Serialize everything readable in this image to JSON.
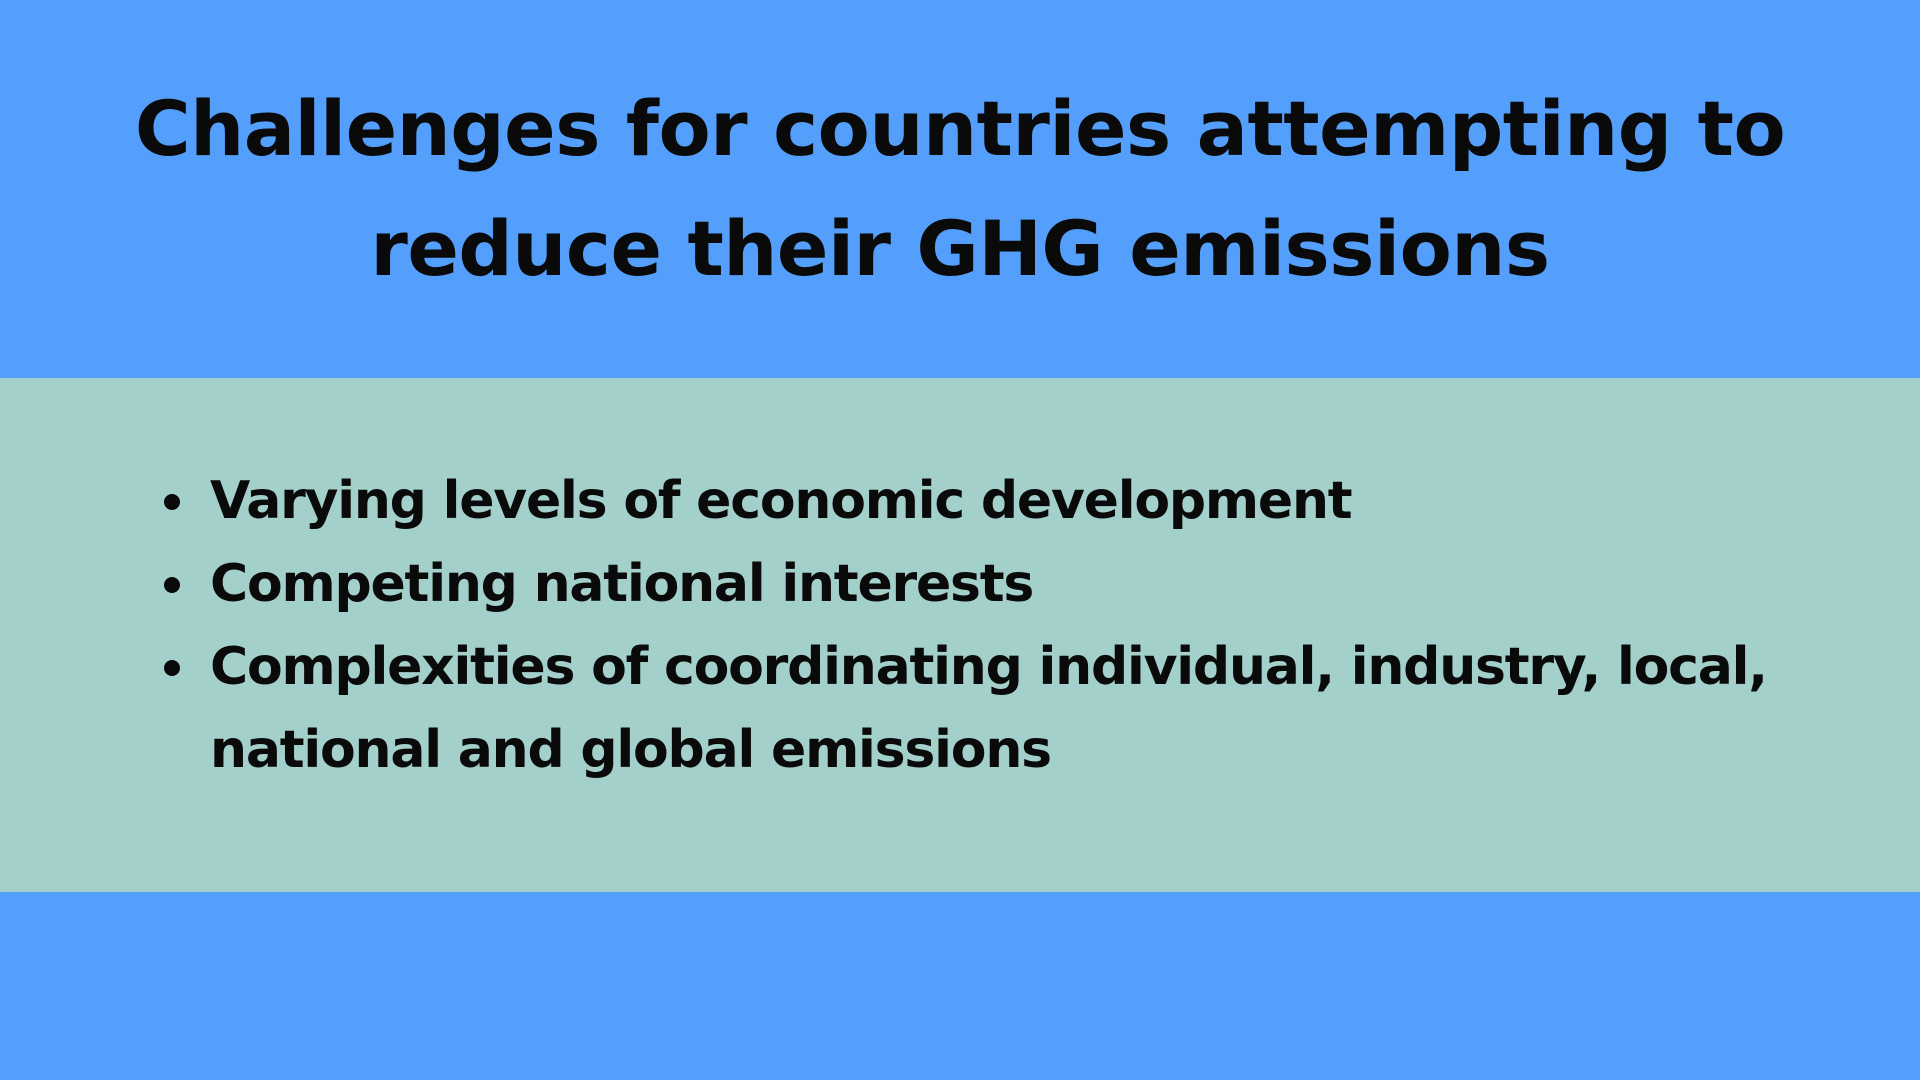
{
  "slide": {
    "title": "Challenges for countries attempting to reduce their GHG emissions",
    "bullets": [
      "Varying levels of economic development",
      "Competing national interests",
      "Complexities of coordinating individual, industry, local, national and global emissions"
    ],
    "colors": {
      "background": "#549ffc",
      "content_band": "#a3d0cb",
      "text": "#0a0a0a"
    }
  }
}
